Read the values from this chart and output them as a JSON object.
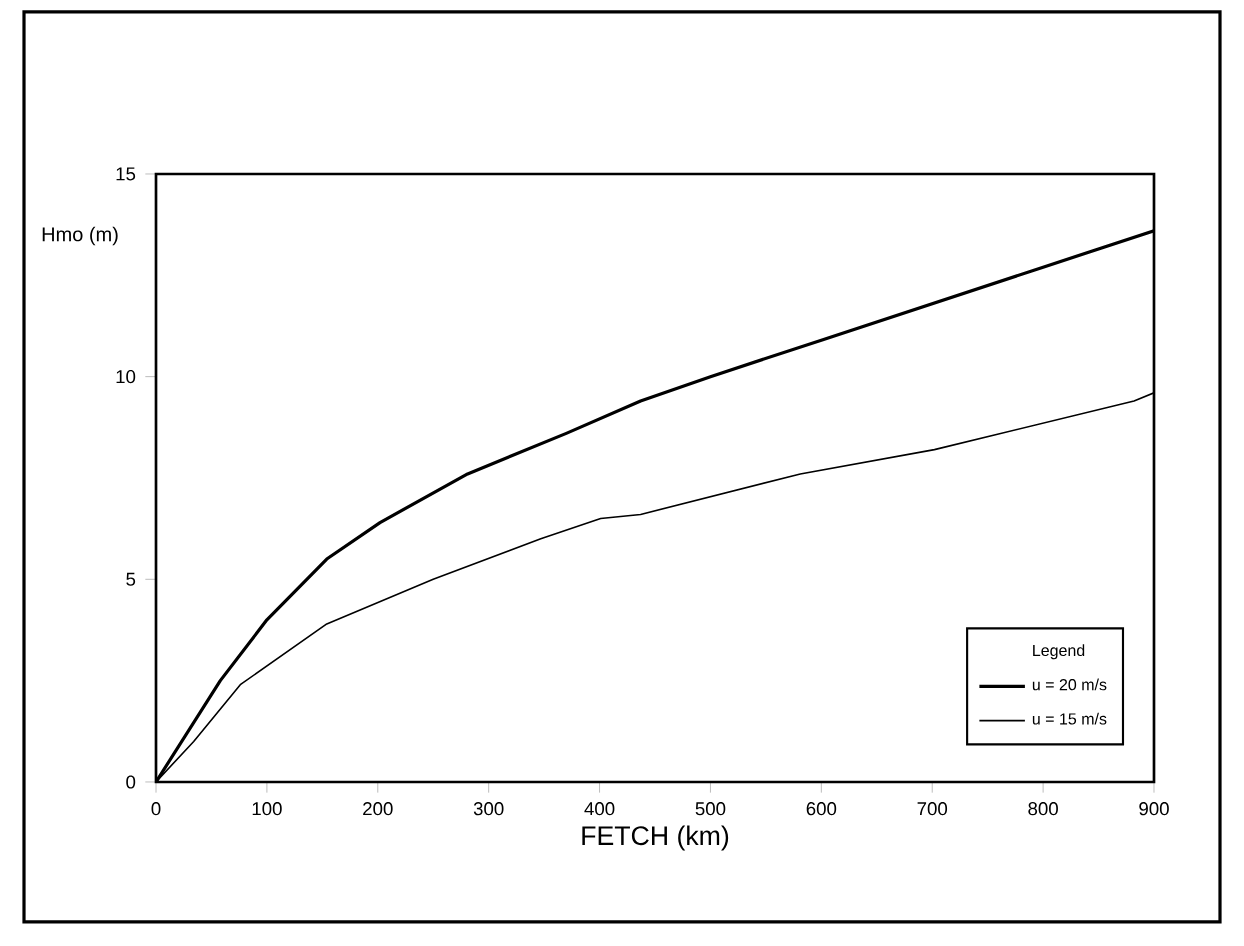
{
  "chart_data": {
    "type": "line",
    "xlabel": "FETCH (km)",
    "ylabel": "Hmo (m)",
    "legend_title": "Legend",
    "xlim": [
      0,
      900
    ],
    "xticks": [
      0,
      100,
      200,
      300,
      400,
      500,
      600,
      700,
      800,
      900
    ],
    "ylim": [
      0,
      15
    ],
    "yticks": [
      0,
      5,
      10,
      15
    ],
    "series": [
      {
        "name": "u = 20 m/s",
        "color": "#000000",
        "x": [
          0,
          58,
          100,
          154,
          202,
          281,
          370,
          437,
          500,
          600,
          700,
          800,
          900
        ],
        "values": [
          0,
          2.5,
          4.0,
          5.5,
          6.4,
          7.6,
          8.6,
          9.4,
          10.0,
          10.9,
          11.8,
          12.7,
          13.6
        ]
      },
      {
        "name": "u = 15 m/s",
        "color": "#000000",
        "x": [
          0,
          34,
          76,
          154,
          250,
          347,
          401,
          437,
          581,
          702,
          882,
          900
        ],
        "values": [
          0,
          1.0,
          2.4,
          3.9,
          5.0,
          6.0,
          6.5,
          6.6,
          7.6,
          8.2,
          9.4,
          9.6
        ]
      }
    ],
    "legend": "bottom right",
    "line_style": "solid",
    "marker": "none",
    "grid": false
  }
}
